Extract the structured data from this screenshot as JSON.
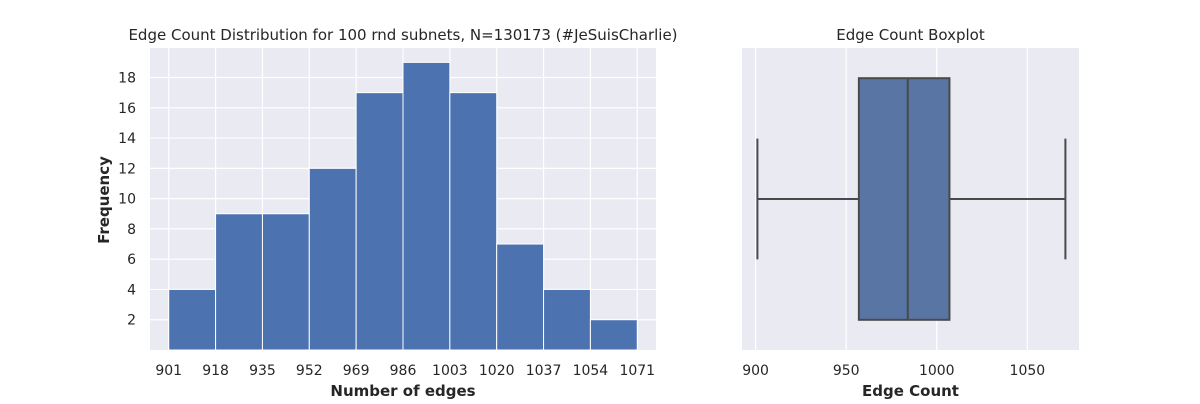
{
  "chart_data": [
    {
      "type": "bar",
      "title": "Edge Count Distribution for 100 rnd subnets, N=130173 (#JeSuisCharlie)",
      "xlabel": "Number of edges",
      "ylabel": "Frequency",
      "bin_edges": [
        901,
        918,
        935,
        952,
        969,
        986,
        1003,
        1020,
        1037,
        1054,
        1071
      ],
      "values": [
        4,
        9,
        9,
        12,
        17,
        19,
        17,
        7,
        4,
        2
      ],
      "x_ticks": [
        "901",
        "918",
        "935",
        "952",
        "969",
        "986",
        "1003",
        "1020",
        "1037",
        "1054",
        "1071"
      ],
      "y_ticks": [
        "2",
        "4",
        "6",
        "8",
        "10",
        "12",
        "14",
        "16",
        "18"
      ],
      "ylim": [
        0,
        19.95
      ],
      "xlim": [
        894.2,
        1077.8
      ],
      "grid": true,
      "bar_color": "#4c72b0"
    },
    {
      "type": "boxplot",
      "title": "Edge Count Boxplot",
      "xlabel": "Edge Count",
      "ylabel": "",
      "whisker_low": 901,
      "q1": 957,
      "median": 984,
      "q3": 1007,
      "whisker_high": 1071,
      "x_ticks": [
        "900",
        "950",
        "1000",
        "1050"
      ],
      "xlim": [
        892.5,
        1078.5
      ],
      "grid": true,
      "box_color": "#5975a4"
    }
  ]
}
